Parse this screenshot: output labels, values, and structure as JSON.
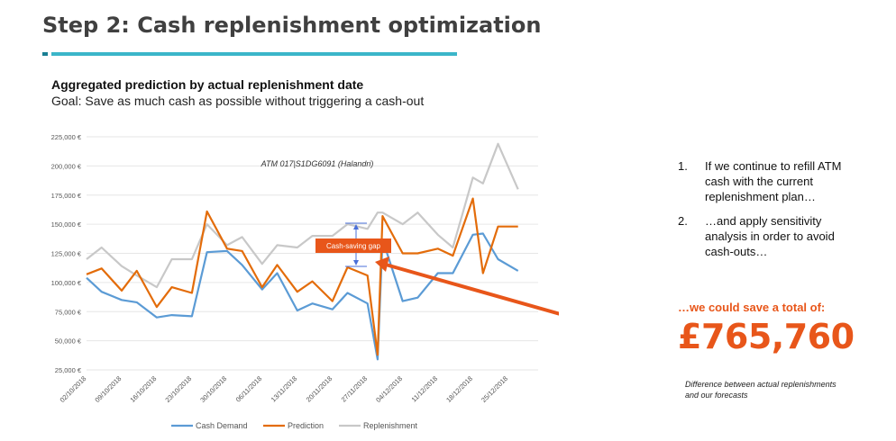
{
  "title": "Step 2: Cash replenishment optimization",
  "chart_heading": "Aggregated prediction by actual replenishment date",
  "chart_subtitle": "Goal: Save as much cash as possible without triggering a cash-out",
  "side": {
    "items": [
      {
        "num": "1.",
        "text": "If we continue to refill ATM cash with the current replenishment plan…"
      },
      {
        "num": "2.",
        "text": "…and apply sensitivity analysis in order to avoid cash-outs…"
      }
    ],
    "savings_intro": "…we could save a total of:",
    "savings_amount": "£765,760",
    "footnote": "Difference between actual replenishments and our  forecasts"
  },
  "colors": {
    "cash_demand": "#5b9bd5",
    "prediction": "#e36c0a",
    "replenishment": "#c8c8c8",
    "accent": "#e8561a"
  },
  "chart_data": {
    "type": "line",
    "title": "",
    "inner_title": "ATM 017|S1DG6091 (Halandri)",
    "annotation": "Cash-saving gap",
    "x_start": "02/10/2018",
    "x_end": "31/12/2018",
    "x_tick_labels": [
      "02/10/2018",
      "09/10/2018",
      "16/10/2018",
      "23/10/2018",
      "30/10/2018",
      "06/11/2018",
      "13/11/2018",
      "20/11/2018",
      "27/11/2018",
      "04/12/2018",
      "11/12/2018",
      "18/12/2018",
      "25/12/2018"
    ],
    "y_tick_labels": [
      "25,000 €",
      "50,000 €",
      "75,000 €",
      "100,000 €",
      "125,000 €",
      "150,000 €",
      "175,000 €",
      "200,000 €",
      "225,000 €"
    ],
    "ylim": [
      25000,
      225000
    ],
    "legend_position": "bottom",
    "series": [
      {
        "name": "Cash Demand",
        "points": [
          [
            "02/10/2018",
            104000
          ],
          [
            "05/10/2018",
            92000
          ],
          [
            "09/10/2018",
            85000
          ],
          [
            "12/10/2018",
            83000
          ],
          [
            "16/10/2018",
            70000
          ],
          [
            "19/10/2018",
            72000
          ],
          [
            "23/10/2018",
            71000
          ],
          [
            "26/10/2018",
            126000
          ],
          [
            "30/10/2018",
            127000
          ],
          [
            "02/11/2018",
            115000
          ],
          [
            "06/11/2018",
            94000
          ],
          [
            "09/11/2018",
            108000
          ],
          [
            "13/11/2018",
            76000
          ],
          [
            "16/11/2018",
            82000
          ],
          [
            "20/11/2018",
            77000
          ],
          [
            "23/11/2018",
            91000
          ],
          [
            "27/11/2018",
            82000
          ],
          [
            "29/11/2018",
            34000
          ],
          [
            "30/11/2018",
            137000
          ],
          [
            "04/12/2018",
            84000
          ],
          [
            "07/12/2018",
            87000
          ],
          [
            "11/12/2018",
            108000
          ],
          [
            "14/12/2018",
            108000
          ],
          [
            "18/12/2018",
            141000
          ],
          [
            "20/12/2018",
            142000
          ],
          [
            "23/12/2018",
            120000
          ],
          [
            "27/12/2018",
            110000
          ]
        ]
      },
      {
        "name": "Prediction",
        "points": [
          [
            "02/10/2018",
            107000
          ],
          [
            "05/10/2018",
            112000
          ],
          [
            "09/10/2018",
            93000
          ],
          [
            "12/10/2018",
            110000
          ],
          [
            "16/10/2018",
            79000
          ],
          [
            "19/10/2018",
            96000
          ],
          [
            "23/10/2018",
            91000
          ],
          [
            "26/10/2018",
            161000
          ],
          [
            "30/10/2018",
            129000
          ],
          [
            "02/11/2018",
            127000
          ],
          [
            "06/11/2018",
            96000
          ],
          [
            "09/11/2018",
            115000
          ],
          [
            "13/11/2018",
            92000
          ],
          [
            "16/11/2018",
            101000
          ],
          [
            "20/11/2018",
            84000
          ],
          [
            "23/11/2018",
            113000
          ],
          [
            "27/11/2018",
            106000
          ],
          [
            "29/11/2018",
            38000
          ],
          [
            "30/11/2018",
            157000
          ],
          [
            "04/12/2018",
            125000
          ],
          [
            "07/12/2018",
            125000
          ],
          [
            "11/12/2018",
            129000
          ],
          [
            "14/12/2018",
            123000
          ],
          [
            "18/12/2018",
            172000
          ],
          [
            "20/12/2018",
            108000
          ],
          [
            "23/12/2018",
            148000
          ],
          [
            "27/12/2018",
            148000
          ]
        ]
      },
      {
        "name": "Replenishment",
        "points": [
          [
            "02/10/2018",
            120000
          ],
          [
            "05/10/2018",
            130000
          ],
          [
            "09/10/2018",
            114000
          ],
          [
            "12/10/2018",
            106000
          ],
          [
            "16/10/2018",
            96000
          ],
          [
            "19/10/2018",
            120000
          ],
          [
            "23/10/2018",
            120000
          ],
          [
            "26/10/2018",
            150000
          ],
          [
            "30/10/2018",
            132000
          ],
          [
            "02/11/2018",
            139000
          ],
          [
            "06/11/2018",
            116000
          ],
          [
            "09/11/2018",
            132000
          ],
          [
            "13/11/2018",
            130000
          ],
          [
            "16/11/2018",
            140000
          ],
          [
            "20/11/2018",
            140000
          ],
          [
            "23/11/2018",
            150000
          ],
          [
            "27/11/2018",
            146000
          ],
          [
            "29/11/2018",
            160000
          ],
          [
            "30/11/2018",
            160000
          ],
          [
            "04/12/2018",
            150000
          ],
          [
            "07/12/2018",
            160000
          ],
          [
            "11/12/2018",
            141000
          ],
          [
            "14/12/2018",
            130000
          ],
          [
            "18/12/2018",
            190000
          ],
          [
            "20/12/2018",
            185000
          ],
          [
            "23/12/2018",
            219000
          ],
          [
            "27/12/2018",
            180000
          ]
        ]
      }
    ]
  }
}
